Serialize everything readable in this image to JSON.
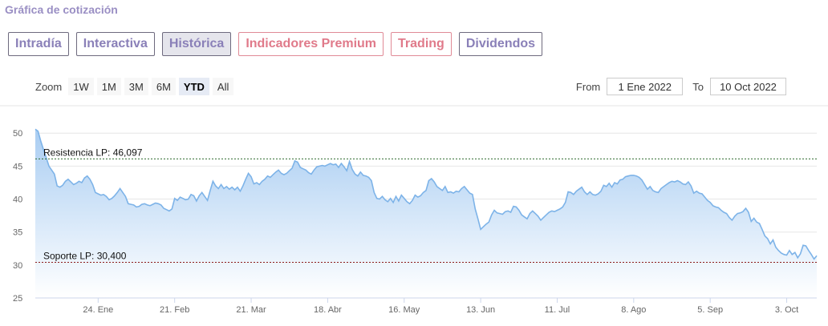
{
  "section_title": "Gráfica de cotización",
  "tabs": [
    {
      "label": "Intradía"
    },
    {
      "label": "Interactiva"
    },
    {
      "label": "Histórica"
    },
    {
      "label": "Indicadores Premium"
    },
    {
      "label": "Trading"
    },
    {
      "label": "Dividendos"
    }
  ],
  "zoom": {
    "label": "Zoom",
    "buttons": [
      "1W",
      "1M",
      "3M",
      "6M",
      "YTD",
      "All"
    ],
    "selected": "YTD"
  },
  "range": {
    "from_label": "From",
    "from_value": "1 Ene 2022",
    "to_label": "To",
    "to_value": "10 Oct 2022"
  },
  "colors": {
    "line": "#7db3e8",
    "area_top": "#a9cdf2",
    "resistance": "#2f6b2f",
    "support": "#8b1a1a",
    "accent": "#9a8fc4",
    "premium": "#e07a8a"
  },
  "chart_data": {
    "type": "area",
    "ylim": [
      25,
      51
    ],
    "yticks": [
      25,
      30,
      35,
      40,
      45,
      50
    ],
    "x_ticks": [
      {
        "x": 24,
        "label": "24. Ene"
      },
      {
        "x": 52,
        "label": "21. Feb"
      },
      {
        "x": 80,
        "label": "21. Mar"
      },
      {
        "x": 108,
        "label": "18. Abr"
      },
      {
        "x": 136,
        "label": "16. May"
      },
      {
        "x": 164,
        "label": "13. Jun"
      },
      {
        "x": 192,
        "label": "11. Jul"
      },
      {
        "x": 220,
        "label": "8. Ago"
      },
      {
        "x": 248,
        "label": "5. Sep"
      },
      {
        "x": 276,
        "label": "3. Oct"
      }
    ],
    "x_range": [
      1,
      283
    ],
    "series": [
      {
        "points": [
          [
            1,
            50.6
          ],
          [
            2,
            50.3
          ],
          [
            3,
            48.8
          ],
          [
            4,
            47.5
          ],
          [
            5,
            46.3
          ],
          [
            6,
            45.0
          ],
          [
            8,
            43.8
          ],
          [
            9,
            42.0
          ],
          [
            10,
            41.8
          ],
          [
            11,
            42.1
          ],
          [
            12,
            42.7
          ],
          [
            13,
            43.0
          ],
          [
            14,
            42.6
          ],
          [
            15,
            42.2
          ],
          [
            16,
            42.4
          ],
          [
            17,
            42.7
          ],
          [
            18,
            42.5
          ],
          [
            19,
            43.2
          ],
          [
            20,
            43.5
          ],
          [
            21,
            43.0
          ],
          [
            22,
            42.2
          ],
          [
            23,
            41.0
          ],
          [
            24,
            40.8
          ],
          [
            25,
            40.6
          ],
          [
            26,
            40.7
          ],
          [
            27,
            40.4
          ],
          [
            28,
            39.9
          ],
          [
            29,
            40.1
          ],
          [
            30,
            40.5
          ],
          [
            31,
            41.0
          ],
          [
            32,
            41.6
          ],
          [
            33,
            41.0
          ],
          [
            34,
            40.4
          ],
          [
            35,
            39.3
          ],
          [
            36,
            39.2
          ],
          [
            37,
            39.1
          ],
          [
            38,
            38.8
          ],
          [
            39,
            38.9
          ],
          [
            40,
            39.2
          ],
          [
            41,
            39.3
          ],
          [
            42,
            39.1
          ],
          [
            43,
            39.0
          ],
          [
            44,
            39.2
          ],
          [
            45,
            39.4
          ],
          [
            46,
            39.3
          ],
          [
            47,
            39.1
          ],
          [
            48,
            38.6
          ],
          [
            49,
            38.4
          ],
          [
            50,
            38.2
          ],
          [
            51,
            38.5
          ],
          [
            52,
            40.1
          ],
          [
            53,
            39.8
          ],
          [
            54,
            40.3
          ],
          [
            55,
            40.1
          ],
          [
            56,
            39.9
          ],
          [
            57,
            40.0
          ],
          [
            58,
            40.7
          ],
          [
            59,
            40.5
          ],
          [
            60,
            39.7
          ],
          [
            61,
            40.5
          ],
          [
            62,
            41.0
          ],
          [
            63,
            40.4
          ],
          [
            64,
            39.8
          ],
          [
            65,
            41.3
          ],
          [
            66,
            42.7
          ],
          [
            67,
            42.0
          ],
          [
            68,
            41.6
          ],
          [
            69,
            42.2
          ],
          [
            70,
            41.6
          ],
          [
            71,
            41.9
          ],
          [
            72,
            41.5
          ],
          [
            73,
            41.8
          ],
          [
            74,
            41.4
          ],
          [
            75,
            41.8
          ],
          [
            76,
            41.2
          ],
          [
            77,
            42.0
          ],
          [
            78,
            43.0
          ],
          [
            79,
            43.9
          ],
          [
            80,
            43.4
          ],
          [
            81,
            42.3
          ],
          [
            82,
            42.5
          ],
          [
            83,
            42.2
          ],
          [
            84,
            42.7
          ],
          [
            85,
            43.0
          ],
          [
            86,
            43.5
          ],
          [
            87,
            43.3
          ],
          [
            88,
            43.7
          ],
          [
            89,
            44.1
          ],
          [
            90,
            44.4
          ],
          [
            91,
            43.9
          ],
          [
            92,
            43.7
          ],
          [
            93,
            43.9
          ],
          [
            94,
            44.3
          ],
          [
            95,
            44.7
          ],
          [
            96,
            45.8
          ],
          [
            97,
            45.6
          ],
          [
            98,
            44.8
          ],
          [
            99,
            44.6
          ],
          [
            100,
            44.4
          ],
          [
            101,
            44.0
          ],
          [
            102,
            43.8
          ],
          [
            103,
            44.4
          ],
          [
            104,
            44.9
          ],
          [
            105,
            45.0
          ],
          [
            106,
            45.1
          ],
          [
            107,
            45.0
          ],
          [
            108,
            45.2
          ],
          [
            109,
            45.4
          ],
          [
            110,
            45.2
          ],
          [
            111,
            45.3
          ],
          [
            112,
            44.8
          ],
          [
            113,
            45.4
          ],
          [
            114,
            44.9
          ],
          [
            115,
            44.3
          ],
          [
            116,
            45.7
          ],
          [
            117,
            44.5
          ],
          [
            118,
            43.8
          ],
          [
            119,
            43.5
          ],
          [
            120,
            44.1
          ],
          [
            121,
            43.6
          ],
          [
            122,
            43.5
          ],
          [
            123,
            43.3
          ],
          [
            124,
            42.8
          ],
          [
            125,
            41.0
          ],
          [
            126,
            40.1
          ],
          [
            127,
            40.0
          ],
          [
            128,
            40.4
          ],
          [
            129,
            39.9
          ],
          [
            130,
            39.6
          ],
          [
            131,
            40.1
          ],
          [
            132,
            39.5
          ],
          [
            133,
            40.4
          ],
          [
            134,
            39.7
          ],
          [
            135,
            40.6
          ],
          [
            136,
            40.1
          ],
          [
            137,
            39.6
          ],
          [
            138,
            39.3
          ],
          [
            139,
            39.8
          ],
          [
            140,
            40.6
          ],
          [
            141,
            40.3
          ],
          [
            142,
            40.5
          ],
          [
            143,
            41.0
          ],
          [
            144,
            41.3
          ],
          [
            145,
            42.8
          ],
          [
            146,
            43.1
          ],
          [
            147,
            42.6
          ],
          [
            148,
            41.9
          ],
          [
            149,
            41.6
          ],
          [
            150,
            41.3
          ],
          [
            151,
            41.9
          ],
          [
            152,
            41.0
          ],
          [
            153,
            41.1
          ],
          [
            154,
            40.9
          ],
          [
            155,
            41.2
          ],
          [
            156,
            41.1
          ],
          [
            157,
            41.6
          ],
          [
            158,
            41.9
          ],
          [
            159,
            41.4
          ],
          [
            160,
            40.9
          ],
          [
            161,
            40.7
          ],
          [
            162,
            38.5
          ],
          [
            163,
            37.0
          ],
          [
            164,
            35.4
          ],
          [
            165,
            35.8
          ],
          [
            166,
            36.2
          ],
          [
            167,
            36.5
          ],
          [
            168,
            37.6
          ],
          [
            169,
            38.3
          ],
          [
            170,
            37.9
          ],
          [
            171,
            37.8
          ],
          [
            172,
            37.7
          ],
          [
            173,
            38.1
          ],
          [
            174,
            38.2
          ],
          [
            175,
            38.0
          ],
          [
            176,
            38.9
          ],
          [
            177,
            38.8
          ],
          [
            178,
            38.3
          ],
          [
            179,
            37.6
          ],
          [
            180,
            37.3
          ],
          [
            181,
            37.0
          ],
          [
            182,
            37.8
          ],
          [
            183,
            38.2
          ],
          [
            184,
            37.8
          ],
          [
            185,
            37.4
          ],
          [
            186,
            36.8
          ],
          [
            187,
            37.2
          ],
          [
            188,
            37.6
          ],
          [
            189,
            38.0
          ],
          [
            190,
            38.2
          ],
          [
            191,
            38.1
          ],
          [
            192,
            38.3
          ],
          [
            193,
            38.5
          ],
          [
            194,
            38.8
          ],
          [
            195,
            39.5
          ],
          [
            196,
            41.1
          ],
          [
            197,
            41.0
          ],
          [
            198,
            40.7
          ],
          [
            199,
            41.2
          ],
          [
            200,
            41.5
          ],
          [
            201,
            41.8
          ],
          [
            202,
            41.1
          ],
          [
            203,
            40.7
          ],
          [
            204,
            41.1
          ],
          [
            205,
            40.7
          ],
          [
            206,
            40.6
          ],
          [
            207,
            40.8
          ],
          [
            208,
            41.2
          ],
          [
            209,
            42.1
          ],
          [
            210,
            41.9
          ],
          [
            211,
            42.4
          ],
          [
            212,
            41.8
          ],
          [
            213,
            42.5
          ],
          [
            214,
            42.3
          ],
          [
            215,
            42.9
          ],
          [
            216,
            43.0
          ],
          [
            217,
            43.4
          ],
          [
            218,
            43.5
          ],
          [
            219,
            43.6
          ],
          [
            220,
            43.6
          ],
          [
            221,
            43.5
          ],
          [
            222,
            43.3
          ],
          [
            223,
            42.9
          ],
          [
            224,
            42.2
          ],
          [
            225,
            41.5
          ],
          [
            226,
            41.9
          ],
          [
            227,
            41.3
          ],
          [
            228,
            41.1
          ],
          [
            229,
            41.0
          ],
          [
            230,
            41.6
          ],
          [
            231,
            41.9
          ],
          [
            232,
            42.2
          ],
          [
            233,
            42.5
          ],
          [
            234,
            42.7
          ],
          [
            235,
            42.6
          ],
          [
            236,
            42.8
          ],
          [
            237,
            42.6
          ],
          [
            238,
            42.3
          ],
          [
            239,
            42.2
          ],
          [
            240,
            42.6
          ],
          [
            241,
            42.0
          ],
          [
            242,
            40.9
          ],
          [
            243,
            41.2
          ],
          [
            244,
            40.9
          ],
          [
            245,
            40.8
          ],
          [
            246,
            40.3
          ],
          [
            247,
            39.8
          ],
          [
            248,
            39.5
          ],
          [
            249,
            39.0
          ],
          [
            250,
            38.8
          ],
          [
            251,
            38.7
          ],
          [
            252,
            38.3
          ],
          [
            253,
            38.0
          ],
          [
            254,
            37.8
          ],
          [
            255,
            37.2
          ],
          [
            256,
            36.8
          ],
          [
            257,
            37.4
          ],
          [
            258,
            37.8
          ],
          [
            259,
            37.9
          ],
          [
            260,
            38.1
          ],
          [
            261,
            38.6
          ],
          [
            262,
            38.0
          ],
          [
            263,
            36.6
          ],
          [
            264,
            37.1
          ],
          [
            265,
            36.5
          ],
          [
            266,
            36.3
          ],
          [
            267,
            35.4
          ],
          [
            268,
            34.4
          ],
          [
            269,
            34.0
          ],
          [
            270,
            33.2
          ],
          [
            271,
            33.8
          ],
          [
            272,
            32.7
          ],
          [
            273,
            32.2
          ],
          [
            274,
            31.8
          ],
          [
            275,
            31.6
          ],
          [
            276,
            31.5
          ],
          [
            277,
            32.2
          ],
          [
            278,
            31.6
          ],
          [
            279,
            31.9
          ],
          [
            280,
            31.1
          ],
          [
            281,
            31.7
          ],
          [
            282,
            33.0
          ],
          [
            283,
            32.9
          ],
          [
            284,
            32.2
          ],
          [
            285,
            31.6
          ],
          [
            286,
            30.9
          ],
          [
            287,
            31.4
          ]
        ]
      }
    ],
    "lines": [
      {
        "label": "Resistencia LP: 46,097",
        "value": 46.097
      },
      {
        "label": "Soporte LP: 30,400",
        "value": 30.4
      }
    ],
    "grid": true,
    "legend": "none"
  }
}
